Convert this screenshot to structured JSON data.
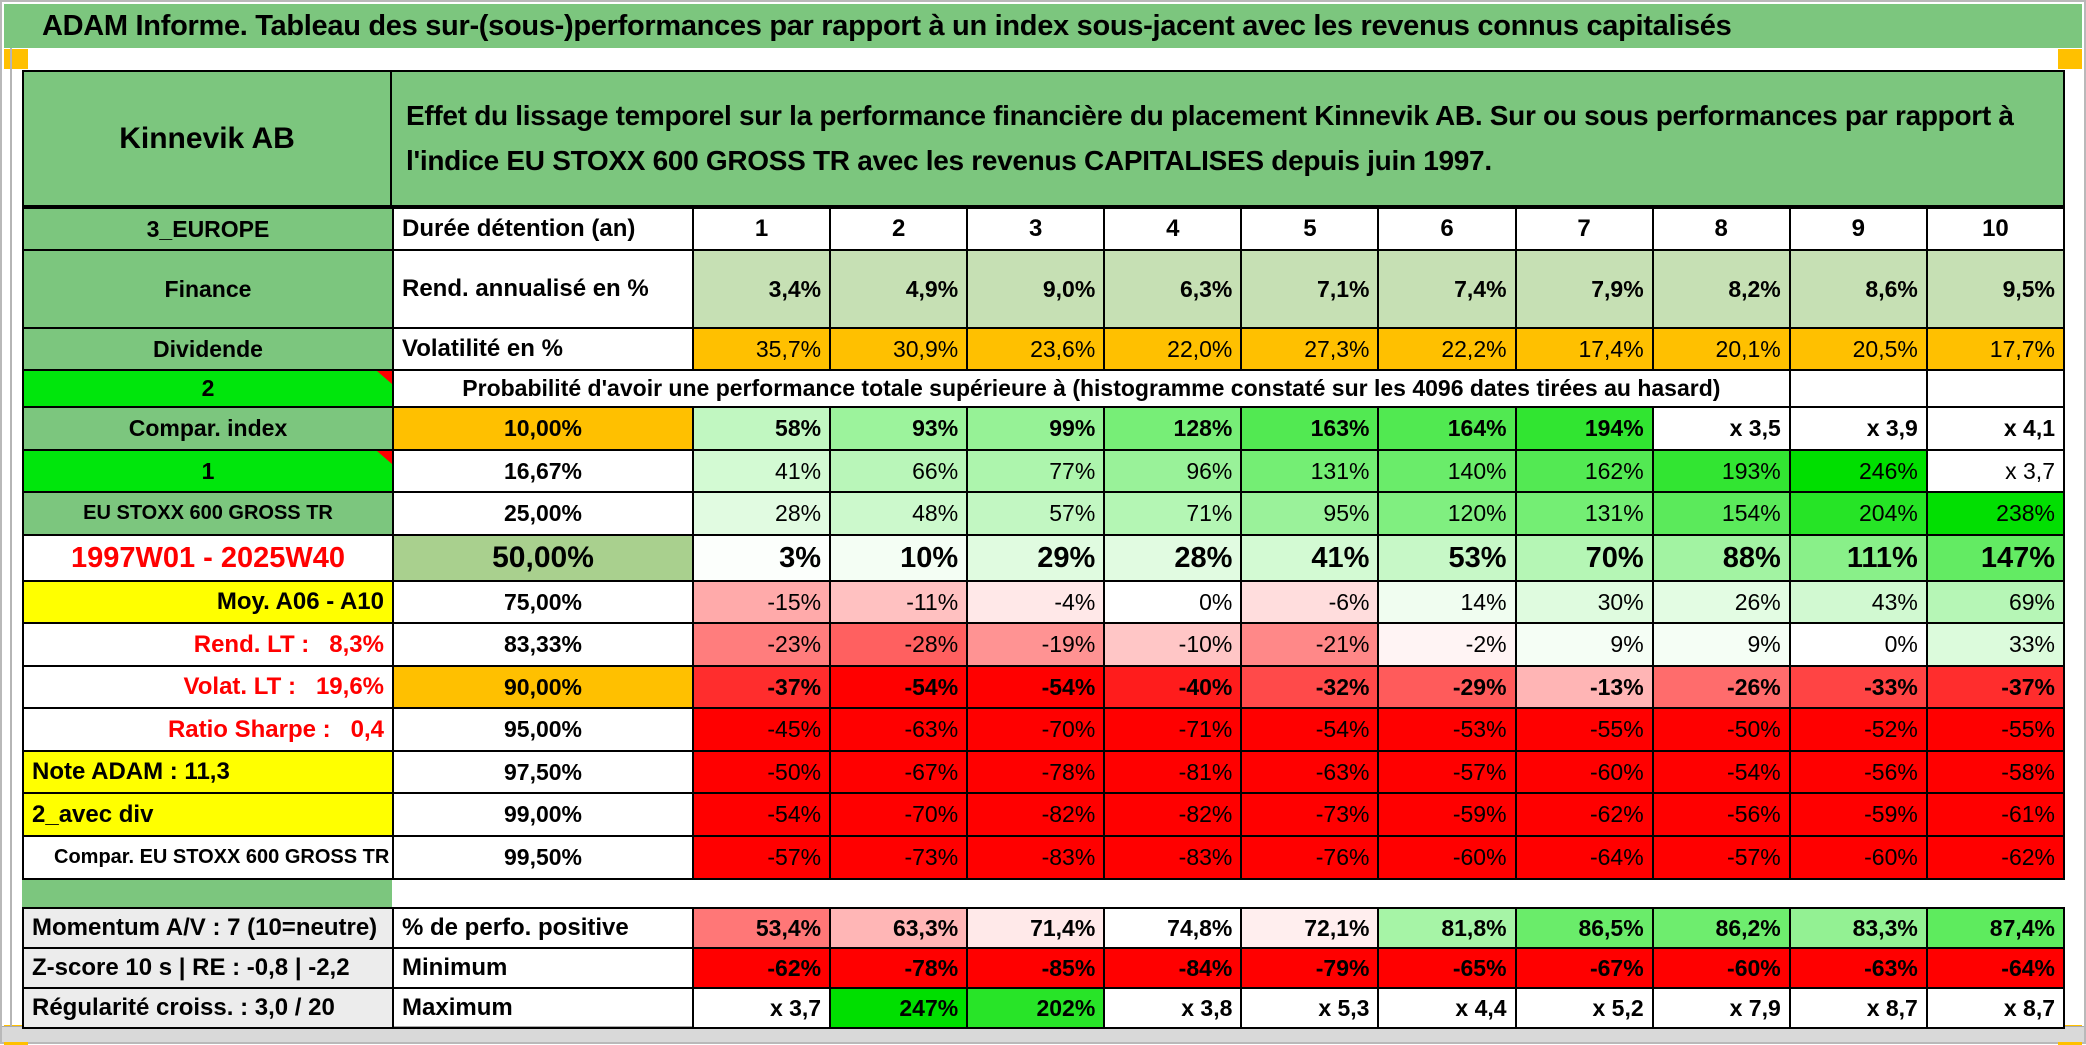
{
  "window": {
    "title": "ADAM Informe. Tableau des sur-(sous-)performances par rapport à un index sous-jacent avec les revenus connus capitalisés"
  },
  "header": {
    "fund_name": "Kinnevik AB",
    "description": "Effet du lissage temporel sur la performance financière du placement Kinnevik AB. Sur ou sous performances par rapport à l'indice EU STOXX 600 GROSS TR avec les revenus CAPITALISES depuis juin 1997."
  },
  "colors": {
    "title_green": "#7CC67E",
    "label_green": "#7CC67E",
    "bright_green": "#00E60C",
    "sage_green": "#A9D08E",
    "light_green": "#C6E0B4",
    "orange": "#FFC000",
    "yellow": "#FFFF00",
    "gray_label": "#ECECEC",
    "scale_red": "#FF0000",
    "scale_green": "#00DF00",
    "red_text": "#FF0000",
    "bottom_bar": "#D9D9D9"
  },
  "table": {
    "rows": [
      {
        "a": {
          "text": "3_EUROPE",
          "bg": "green",
          "bold": true,
          "align": "center"
        },
        "b": {
          "text": "Durée détention (an)",
          "align": "left",
          "bold": true,
          "size": "md"
        },
        "mode": "head",
        "bold": true,
        "cells": [
          "1",
          "2",
          "3",
          "4",
          "5",
          "6",
          "7",
          "8",
          "9",
          "10"
        ]
      },
      {
        "a": {
          "text": "Finance",
          "bg": "green",
          "bold": true,
          "align": "center"
        },
        "b": {
          "text": "Rend. annualisé en %",
          "align": "left",
          "bold": true,
          "size": "md"
        },
        "mode": "fixedlg",
        "bold": true,
        "cells": [
          "3,4%",
          "4,9%",
          "9,0%",
          "6,3%",
          "7,1%",
          "7,4%",
          "7,9%",
          "8,2%",
          "8,6%",
          "9,5%"
        ]
      },
      {
        "a": {
          "text": "Dividende",
          "bg": "green",
          "bold": true,
          "align": "center"
        },
        "b": {
          "text": "Volatilité en %",
          "align": "left",
          "bold": true,
          "size": "md"
        },
        "mode": "fixedor",
        "bold": false,
        "cells": [
          "35,7%",
          "30,9%",
          "23,6%",
          "22,0%",
          "27,3%",
          "22,2%",
          "17,4%",
          "20,1%",
          "20,5%",
          "17,7%"
        ]
      },
      {
        "a": {
          "text": "2",
          "bg": "bright",
          "bold": true,
          "align": "center",
          "corner": true
        },
        "merged": {
          "text": "Probabilité d'avoir une performance totale supérieure à (histogramme constaté sur les 4096 dates tirées au hasard)",
          "span": 9,
          "empty_after": 2
        }
      },
      {
        "a": {
          "text": "Compar. index",
          "bg": "green",
          "bold": true,
          "align": "center"
        },
        "b": {
          "text": "10,00%",
          "bg": "orange",
          "align": "center",
          "bold": true
        },
        "mode": "scale",
        "bold": true,
        "cells": [
          "58%",
          "93%",
          "99%",
          "128%",
          "163%",
          "164%",
          "194%",
          "x 3,5",
          "x 3,9",
          "x 4,1"
        ]
      },
      {
        "a": {
          "text": "1",
          "bg": "bright",
          "bold": true,
          "align": "center",
          "corner": true
        },
        "b": {
          "text": "16,67%",
          "align": "center",
          "bold": true
        },
        "mode": "scale",
        "bold": false,
        "cells": [
          "41%",
          "66%",
          "77%",
          "96%",
          "131%",
          "140%",
          "162%",
          "193%",
          "246%",
          "x 3,7"
        ]
      },
      {
        "a": {
          "text": "EU STOXX 600 GROSS TR",
          "bg": "green",
          "bold": true,
          "align": "center",
          "size": "sm"
        },
        "b": {
          "text": "25,00%",
          "align": "center",
          "bold": true
        },
        "mode": "scale",
        "bold": false,
        "cells": [
          "28%",
          "48%",
          "57%",
          "71%",
          "95%",
          "120%",
          "131%",
          "154%",
          "204%",
          "238%"
        ]
      },
      {
        "a": {
          "text": "1997W01 - 2025W40",
          "bold": true,
          "align": "center",
          "color": "red",
          "size": "lg"
        },
        "b": {
          "text": "50,00%",
          "bg": "sage",
          "align": "center",
          "bold": true,
          "size": "xl"
        },
        "mode": "scale",
        "bold": true,
        "size": "lg",
        "cells": [
          "3%",
          "10%",
          "29%",
          "28%",
          "41%",
          "53%",
          "70%",
          "88%",
          "111%",
          "147%"
        ]
      },
      {
        "a": {
          "text": "Moy. A06 - A10",
          "bg": "yellow",
          "bold": true,
          "align": "right",
          "size": "md"
        },
        "b": {
          "text": "75,00%",
          "align": "center",
          "bold": true
        },
        "mode": "scale",
        "bold": false,
        "cells": [
          "-15%",
          "-11%",
          "-4%",
          "0%",
          "-6%",
          "14%",
          "30%",
          "26%",
          "43%",
          "69%"
        ]
      },
      {
        "a": {
          "text": "Rend. LT :   8,3%",
          "bold": true,
          "align": "right",
          "color": "red",
          "size": "md"
        },
        "b": {
          "text": "83,33%",
          "align": "center",
          "bold": true
        },
        "mode": "scale",
        "bold": false,
        "cells": [
          "-23%",
          "-28%",
          "-19%",
          "-10%",
          "-21%",
          "-2%",
          "9%",
          "9%",
          "0%",
          "33%"
        ]
      },
      {
        "a": {
          "text": "Volat. LT :   19,6%",
          "bold": true,
          "align": "right",
          "color": "red",
          "size": "md"
        },
        "b": {
          "text": "90,00%",
          "bg": "orange",
          "align": "center",
          "bold": true
        },
        "mode": "scale",
        "bold": true,
        "cells": [
          "-37%",
          "-54%",
          "-54%",
          "-40%",
          "-32%",
          "-29%",
          "-13%",
          "-26%",
          "-33%",
          "-37%"
        ]
      },
      {
        "a": {
          "text": "Ratio Sharpe :   0,4",
          "bold": true,
          "align": "right",
          "color": "red",
          "size": "md"
        },
        "b": {
          "text": "95,00%",
          "align": "center",
          "bold": true
        },
        "mode": "scale",
        "bold": false,
        "cells": [
          "-45%",
          "-63%",
          "-70%",
          "-71%",
          "-54%",
          "-53%",
          "-55%",
          "-50%",
          "-52%",
          "-55%"
        ]
      },
      {
        "a": {
          "text": "Note ADAM : 11,3",
          "bg": "yellow",
          "bold": true,
          "align": "left",
          "size": "md"
        },
        "b": {
          "text": "97,50%",
          "align": "center",
          "bold": true
        },
        "mode": "scale",
        "bold": false,
        "cells": [
          "-50%",
          "-67%",
          "-78%",
          "-81%",
          "-63%",
          "-57%",
          "-60%",
          "-54%",
          "-56%",
          "-58%"
        ]
      },
      {
        "a": {
          "text": "2_avec div",
          "bg": "yellow",
          "bold": true,
          "align": "left",
          "size": "md"
        },
        "b": {
          "text": "99,00%",
          "align": "center",
          "bold": true
        },
        "mode": "scale",
        "bold": false,
        "cells": [
          "-54%",
          "-70%",
          "-82%",
          "-82%",
          "-73%",
          "-59%",
          "-62%",
          "-56%",
          "-59%",
          "-61%"
        ]
      },
      {
        "a": {
          "text": "Compar. EU STOXX 600 GROSS TR",
          "bold": true,
          "align": "left",
          "indent": true,
          "size": "sm"
        },
        "b": {
          "text": "99,50%",
          "align": "center",
          "bold": true
        },
        "mode": "scale",
        "bold": false,
        "cells": [
          "-57%",
          "-73%",
          "-83%",
          "-83%",
          "-76%",
          "-60%",
          "-64%",
          "-57%",
          "-60%",
          "-62%"
        ]
      }
    ]
  },
  "bottom": {
    "rows": [
      {
        "a": {
          "text": "Momentum A/V : 7 (10=neutre)",
          "bg": "gray",
          "bold": true,
          "align": "left",
          "size": "md"
        },
        "b": {
          "text": "% de perfo. positive",
          "align": "left",
          "bold": true,
          "size": "md"
        },
        "mode": "scale2",
        "bold": true,
        "cells": [
          "53,4%",
          "63,3%",
          "71,4%",
          "74,8%",
          "72,1%",
          "81,8%",
          "86,5%",
          "86,2%",
          "83,3%",
          "87,4%"
        ]
      },
      {
        "a": {
          "text": "Z-score 10 s | RE : -0,8 | -2,2",
          "bg": "gray",
          "bold": true,
          "align": "left",
          "size": "md"
        },
        "b": {
          "text": "Minimum",
          "align": "left",
          "bold": true,
          "size": "md"
        },
        "mode": "scale",
        "bold": true,
        "cells": [
          "-62%",
          "-78%",
          "-85%",
          "-84%",
          "-79%",
          "-65%",
          "-67%",
          "-60%",
          "-63%",
          "-64%"
        ]
      },
      {
        "a": {
          "text": "Régularité croiss. : 3,0 / 20",
          "bg": "gray",
          "bold": true,
          "align": "left",
          "size": "md"
        },
        "b": {
          "text": "Maximum",
          "align": "left",
          "bold": true,
          "size": "md"
        },
        "mode": "scale",
        "bold": true,
        "cells": [
          "x 3,7",
          "247%",
          "202%",
          "x 3,8",
          "x 5,3",
          "x 4,4",
          "x 5,2",
          "x 7,9",
          "x 8,7",
          "x 8,7"
        ]
      }
    ]
  }
}
